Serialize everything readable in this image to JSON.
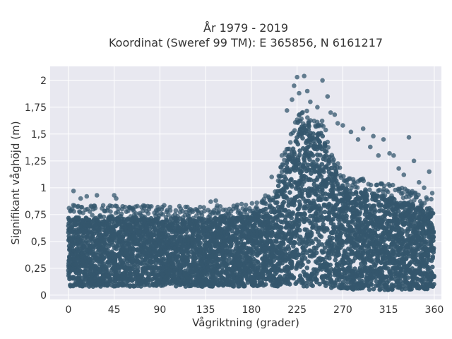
{
  "chart_data": {
    "type": "scatter",
    "title": "År 1979 - 2019",
    "subtitle": "Koordinat (Sweref 99 TM): E 365856, N 6161217",
    "xlabel": "Vågriktning (grader)",
    "ylabel": "Signifikant våghöjd (m)",
    "xlim": [
      -18,
      367
    ],
    "ylim": [
      -0.04,
      2.13
    ],
    "x_ticks": [
      0,
      45,
      90,
      135,
      180,
      225,
      270,
      315,
      360
    ],
    "x_tick_labels": [
      "0",
      "45",
      "90",
      "135",
      "180",
      "225",
      "270",
      "315",
      "360"
    ],
    "y_ticks": [
      0,
      0.25,
      0.5,
      0.75,
      1,
      1.25,
      1.5,
      1.75,
      2
    ],
    "y_tick_labels": [
      "0",
      "0,25",
      "0,5",
      "0,75",
      "1",
      "1,25",
      "1,5",
      "1,75",
      "2"
    ],
    "grid": true,
    "marker_color": "#34576d",
    "plot_background": "#e8e8f0",
    "envelope": {
      "description_x": [
        0,
        45,
        90,
        135,
        180,
        200,
        225,
        235,
        250,
        270,
        300,
        330,
        360
      ],
      "upper_dense": [
        0.72,
        0.72,
        0.72,
        0.71,
        0.74,
        0.85,
        1.55,
        1.62,
        1.5,
        1.0,
        0.95,
        0.88,
        0.8
      ],
      "lower_dense": [
        0.08,
        0.08,
        0.08,
        0.08,
        0.08,
        0.08,
        0.08,
        0.08,
        0.08,
        0.05,
        0.05,
        0.05,
        0.06
      ]
    },
    "outliers": [
      {
        "x": 5,
        "y": 0.97
      },
      {
        "x": 12,
        "y": 0.9
      },
      {
        "x": 18,
        "y": 0.92
      },
      {
        "x": 28,
        "y": 0.93
      },
      {
        "x": 45,
        "y": 0.93
      },
      {
        "x": 47,
        "y": 0.9
      },
      {
        "x": 60,
        "y": 0.82
      },
      {
        "x": 75,
        "y": 0.83
      },
      {
        "x": 88,
        "y": 0.82
      },
      {
        "x": 100,
        "y": 0.82
      },
      {
        "x": 120,
        "y": 0.8
      },
      {
        "x": 140,
        "y": 0.87
      },
      {
        "x": 145,
        "y": 0.88
      },
      {
        "x": 160,
        "y": 0.78
      },
      {
        "x": 175,
        "y": 0.8
      },
      {
        "x": 185,
        "y": 0.82
      },
      {
        "x": 200,
        "y": 1.1
      },
      {
        "x": 210,
        "y": 1.3
      },
      {
        "x": 215,
        "y": 1.72
      },
      {
        "x": 220,
        "y": 1.82
      },
      {
        "x": 222,
        "y": 1.95
      },
      {
        "x": 225,
        "y": 2.03
      },
      {
        "x": 227,
        "y": 1.88
      },
      {
        "x": 232,
        "y": 2.04
      },
      {
        "x": 235,
        "y": 1.9
      },
      {
        "x": 238,
        "y": 1.8
      },
      {
        "x": 245,
        "y": 1.75
      },
      {
        "x": 250,
        "y": 2.0
      },
      {
        "x": 255,
        "y": 1.85
      },
      {
        "x": 258,
        "y": 1.7
      },
      {
        "x": 262,
        "y": 1.68
      },
      {
        "x": 265,
        "y": 1.6
      },
      {
        "x": 270,
        "y": 1.58
      },
      {
        "x": 278,
        "y": 1.52
      },
      {
        "x": 285,
        "y": 1.45
      },
      {
        "x": 290,
        "y": 1.55
      },
      {
        "x": 297,
        "y": 1.38
      },
      {
        "x": 300,
        "y": 1.48
      },
      {
        "x": 305,
        "y": 1.3
      },
      {
        "x": 310,
        "y": 1.45
      },
      {
        "x": 316,
        "y": 1.32
      },
      {
        "x": 320,
        "y": 1.3
      },
      {
        "x": 325,
        "y": 1.18
      },
      {
        "x": 330,
        "y": 1.12
      },
      {
        "x": 335,
        "y": 1.47
      },
      {
        "x": 340,
        "y": 1.25
      },
      {
        "x": 345,
        "y": 1.05
      },
      {
        "x": 350,
        "y": 1.0
      },
      {
        "x": 355,
        "y": 1.15
      },
      {
        "x": 358,
        "y": 0.95
      }
    ]
  }
}
